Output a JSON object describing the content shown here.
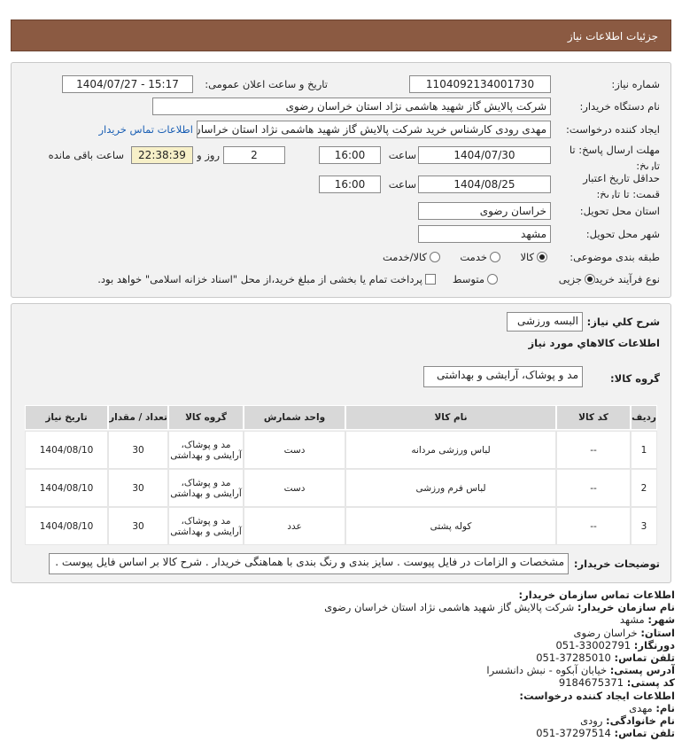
{
  "header": {
    "title": "جزئیات اطلاعات نیاز"
  },
  "form": {
    "need_number": {
      "label": "شماره نیاز:",
      "value": "1104092134001730"
    },
    "announce": {
      "label": "تاریخ و ساعت اعلان عمومی:",
      "value": "1404/07/27 - 15:17"
    },
    "buyer": {
      "label": "نام دستگاه خریدار:",
      "value": "شرکت پالایش گاز شهید هاشمی نژاد   استان خراسان رضوی"
    },
    "creator": {
      "label": "ایجاد کننده درخواست:",
      "value": "مهدی رودی کارشناس خرید شرکت پالایش گاز شهید هاشمی نژاد   استان خراسان رضوی",
      "link": "اطلاعات تماس خریدار"
    },
    "deadline": {
      "label": "مهلت ارسال پاسخ: تا تاریخ:",
      "date": "1404/07/30",
      "time_label": "ساعت",
      "time": "16:00",
      "days": "2",
      "days_label": "روز و",
      "remaining": "22:38:39",
      "remaining_label": "ساعت باقی مانده"
    },
    "validity": {
      "label": "حداقل تاریخ اعتبار قیمت: تا تاریخ:",
      "date": "1404/08/25",
      "time_label": "ساعت",
      "time": "16:00"
    },
    "province": {
      "label": "استان محل تحویل:",
      "value": "خراسان رضوی"
    },
    "city": {
      "label": "شهر محل تحویل:",
      "value": "مشهد"
    },
    "category": {
      "label": "طبقه بندی موضوعی:",
      "options": [
        "کالا",
        "خدمت",
        "کالا/خدمت"
      ],
      "selected": 0
    },
    "process": {
      "label": "نوع فرآیند خرید :",
      "options": [
        "جزیی",
        "متوسط"
      ],
      "selected": 0,
      "checkbox": "پرداخت تمام یا بخشی از مبلغ خرید،از محل \"اسناد خزانه اسلامی\" خواهد بود."
    }
  },
  "items": {
    "description": {
      "label": "شرح کلي نياز:",
      "value": "البسه ورزشی"
    },
    "section_title": "اطلاعات كالاهاي مورد نياز",
    "group": {
      "label": "گروه کالا:",
      "value": "مد و پوشاک، آرایشی و بهداشتی"
    },
    "table": {
      "columns": [
        "ردیف",
        "کد کالا",
        "نام کالا",
        "واحد شمارش",
        "گروه کالا",
        "تعداد / مقدار",
        "تاریخ نیاز"
      ],
      "rows": [
        [
          "1",
          "--",
          "لباس ورزشی مردانه",
          "دست",
          "مد و پوشاک، آرایشی و بهداشتی",
          "30",
          "1404/08/10"
        ],
        [
          "2",
          "--",
          "لباس فرم ورزشی",
          "دست",
          "مد و پوشاک، آرایشی و بهداشتی",
          "30",
          "1404/08/10"
        ],
        [
          "3",
          "--",
          "کوله پشتی",
          "عدد",
          "مد و پوشاک، آرایشی و بهداشتی",
          "30",
          "1404/08/10"
        ]
      ]
    },
    "notes": {
      "label": "توضیحات خریدار:",
      "value": "مشخصات و الزامات در فایل پیوست . سایز بندی و رنگ بندی با هماهنگی خریدار . شرح کالا بر اساس فایل پیوست ."
    }
  },
  "contact": {
    "title": "اطلاعات تماس سازمان خریدار:",
    "org": [
      [
        "نام سازمان خریدار:",
        "شرکت پالایش گاز شهید هاشمی نژاد استان خراسان رضوی"
      ],
      [
        "شهر:",
        "مشهد"
      ],
      [
        "استان:",
        "خراسان رضوی"
      ],
      [
        "دورنگار:",
        "33002791-051"
      ],
      [
        "تلفن تماس:",
        "37285010-051"
      ],
      [
        "آدرس پستی:",
        "خیابان آبکوه - نبش دانشسرا"
      ],
      [
        "کد پستی:",
        "9184675371"
      ]
    ],
    "creator_title": "اطلاعات ایجاد کننده درخواست:",
    "creator": [
      [
        "نام:",
        "مهدی"
      ],
      [
        "نام خانوادگی:",
        "رودی"
      ],
      [
        "تلفن تماس:",
        "37297514-051"
      ]
    ]
  }
}
